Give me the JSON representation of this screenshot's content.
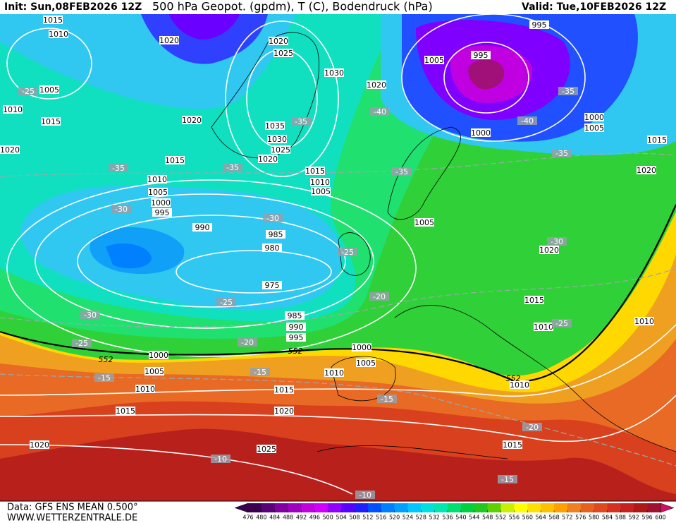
{
  "header": {
    "init": "Init: Sun,08FEB2026 12Z",
    "title": "500 hPa Geopot. (gpdm), T (C), Bodendruck (hPa)",
    "valid": "Valid: Tue,10FEB2026 12Z"
  },
  "isobar_labels": [
    1015,
    1010,
    1020,
    1020,
    1025,
    1030,
    1020,
    1005,
    995,
    995,
    1005,
    1010,
    1015,
    1020,
    1020,
    1035,
    1030,
    1025,
    1020,
    1015,
    1015,
    1010,
    1005,
    1010,
    1005,
    1000,
    995,
    990,
    985,
    980,
    975,
    1005,
    1000,
    1000,
    1005,
    1015,
    1020,
    1020,
    1015,
    1010,
    1010,
    985,
    990,
    995,
    1000,
    1000,
    1005,
    1005,
    1010,
    1010,
    1015,
    1015,
    1020,
    1020,
    1025,
    1010,
    1015
  ],
  "temperature_labels": [
    -25,
    -35,
    -40,
    -40,
    -35,
    -35,
    -35,
    -35,
    -35,
    -30,
    -30,
    -25,
    -30,
    -25,
    -20,
    -30,
    -25,
    -25,
    -20,
    -15,
    -15,
    -15,
    -20,
    -10,
    -15,
    -10
  ],
  "height_labels": [
    552,
    552,
    552
  ],
  "colorbar": {
    "labels": [
      476,
      480,
      484,
      488,
      492,
      496,
      500,
      504,
      508,
      512,
      516,
      520,
      524,
      528,
      532,
      536,
      540,
      544,
      548,
      552,
      556,
      560,
      564,
      568,
      572,
      576,
      580,
      584,
      588,
      592,
      596,
      600
    ],
    "colors": [
      "#3c0050",
      "#5a0078",
      "#8000a0",
      "#a000c0",
      "#c000e0",
      "#d000ff",
      "#9000ff",
      "#5a00ff",
      "#2020ff",
      "#0050ff",
      "#0080ff",
      "#00a0ff",
      "#00c8ff",
      "#00e0e0",
      "#00e8b0",
      "#00e070",
      "#00d040",
      "#20c820",
      "#60d000",
      "#c8f000",
      "#ffff00",
      "#ffe000",
      "#ffc000",
      "#ffa000",
      "#f08020",
      "#e86020",
      "#e04820",
      "#d83020",
      "#c82020",
      "#b01818",
      "#a01030",
      "#d01060"
    ]
  },
  "footer": {
    "source": "Data: GFS ENS MEAN 0.500°",
    "site": "WWW.WETTERZENTRALE.DE"
  }
}
